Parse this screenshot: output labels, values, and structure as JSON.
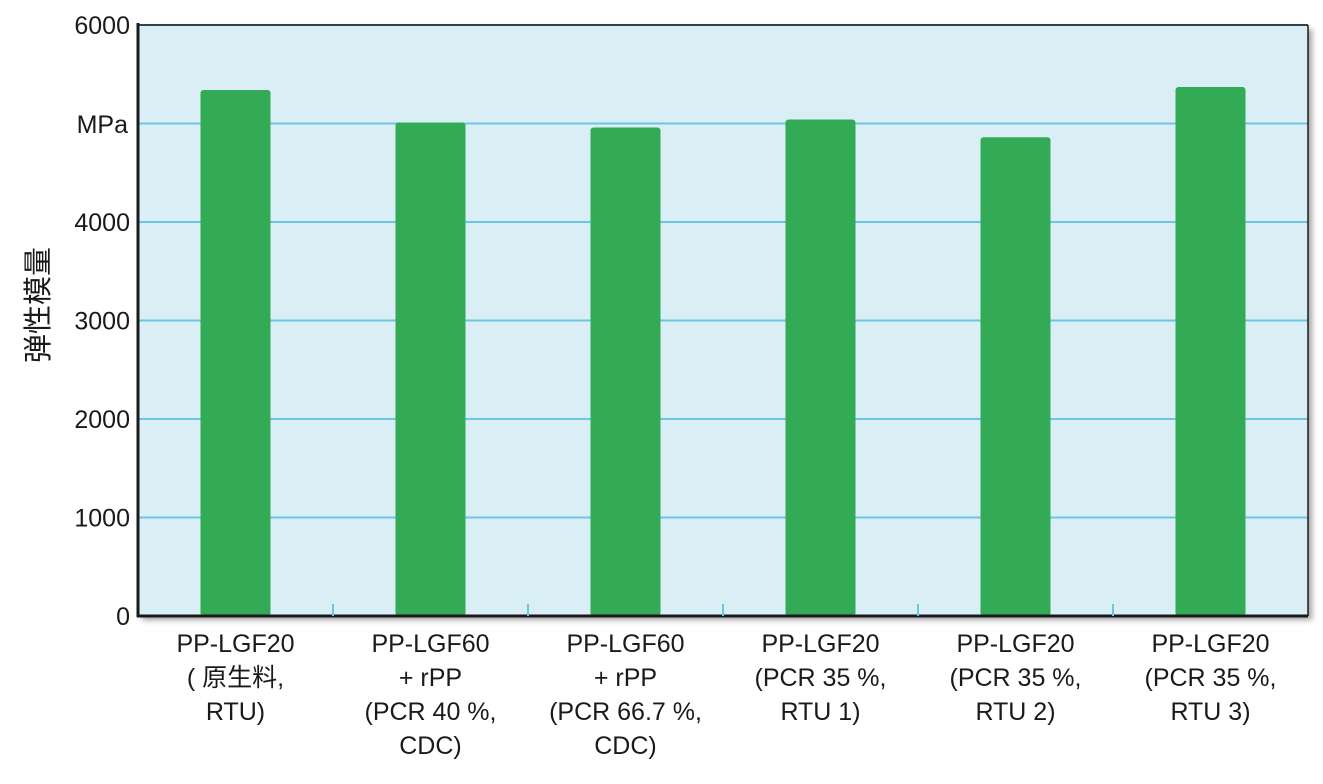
{
  "chart_data": {
    "type": "bar",
    "ylabel": "弹性模量",
    "unit": "MPa",
    "ylim": [
      0,
      6000
    ],
    "yticks": [
      "0",
      "1000",
      "2000",
      "3000",
      "4000",
      "",
      "6000"
    ],
    "grid": true,
    "categories": [
      [
        "PP-LGF20",
        "( 原生料,",
        "RTU)"
      ],
      [
        "PP-LGF60",
        "+ rPP",
        "(PCR 40 %,",
        "CDC)"
      ],
      [
        "PP-LGF60",
        "+ rPP",
        "(PCR 66.7 %,",
        "CDC)"
      ],
      [
        "PP-LGF20",
        "(PCR 35 %,",
        "RTU 1)"
      ],
      [
        "PP-LGF20",
        "(PCR 35 %,",
        "RTU 2)"
      ],
      [
        "PP-LGF20",
        "(PCR 35 %,",
        "RTU 3)"
      ]
    ],
    "values": [
      5340,
      5010,
      4960,
      5040,
      4860,
      5370
    ],
    "colors": {
      "bar": "#33aa55",
      "plot_bg": "#daeef6",
      "grid": "#6cc6e3",
      "frame": "#1a1a1a"
    }
  }
}
